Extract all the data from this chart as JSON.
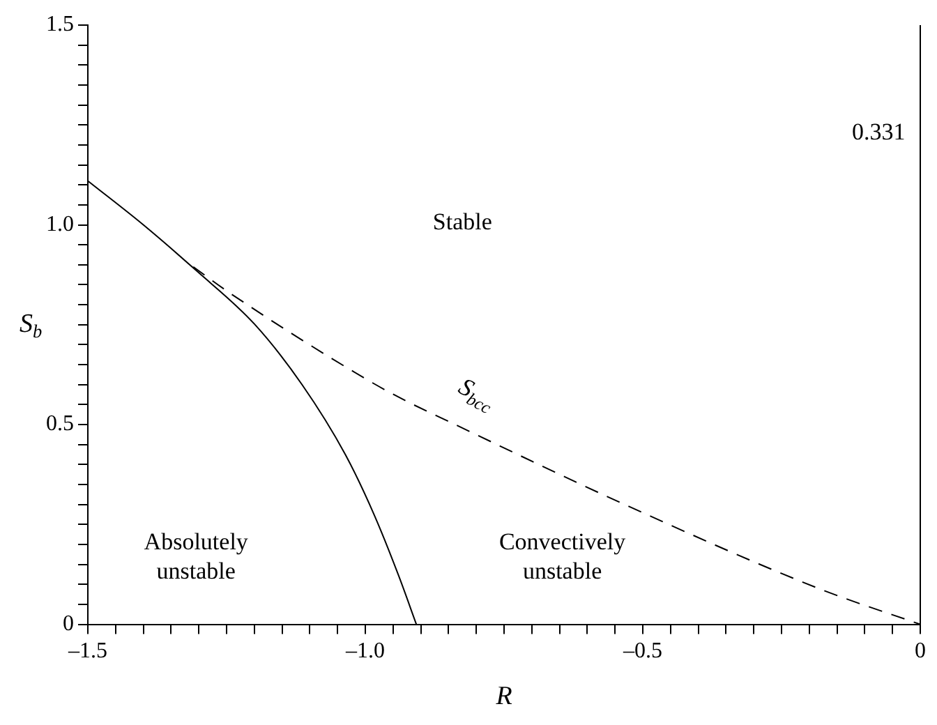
{
  "chart_data": {
    "type": "line",
    "xlabel": "R",
    "ylabel": "S$_{b}$",
    "xlim": [
      -1.5,
      0
    ],
    "ylim": [
      0,
      1.5
    ],
    "xticks": [
      {
        "value": -1.5,
        "label": "–1.5"
      },
      {
        "value": -1.45,
        "label": null
      },
      {
        "value": -1.4,
        "label": null
      },
      {
        "value": -1.35,
        "label": null
      },
      {
        "value": -1.3,
        "label": null
      },
      {
        "value": -1.25,
        "label": null
      },
      {
        "value": -1.2,
        "label": null
      },
      {
        "value": -1.15,
        "label": null
      },
      {
        "value": -1.1,
        "label": null
      },
      {
        "value": -1.05,
        "label": null
      },
      {
        "value": -1.0,
        "label": "–1.0"
      },
      {
        "value": -0.95,
        "label": null
      },
      {
        "value": -0.9,
        "label": null
      },
      {
        "value": -0.85,
        "label": null
      },
      {
        "value": -0.8,
        "label": null
      },
      {
        "value": -0.75,
        "label": null
      },
      {
        "value": -0.7,
        "label": null
      },
      {
        "value": -0.65,
        "label": null
      },
      {
        "value": -0.6,
        "label": null
      },
      {
        "value": -0.55,
        "label": null
      },
      {
        "value": -0.5,
        "label": "–0.5"
      },
      {
        "value": -0.45,
        "label": null
      },
      {
        "value": -0.4,
        "label": null
      },
      {
        "value": -0.35,
        "label": null
      },
      {
        "value": -0.3,
        "label": null
      },
      {
        "value": -0.25,
        "label": null
      },
      {
        "value": -0.2,
        "label": null
      },
      {
        "value": -0.15,
        "label": null
      },
      {
        "value": -0.1,
        "label": null
      },
      {
        "value": -0.05,
        "label": null
      },
      0
    ],
    "yticks": [
      0,
      {
        "value": 0.05,
        "label": null
      },
      {
        "value": 0.1,
        "label": null
      },
      {
        "value": 0.15,
        "label": null
      },
      {
        "value": 0.2,
        "label": null
      },
      {
        "value": 0.25,
        "label": null
      },
      {
        "value": 0.3,
        "label": null
      },
      {
        "value": 0.35,
        "label": null
      },
      {
        "value": 0.4,
        "label": null
      },
      {
        "value": 0.45,
        "label": null
      },
      0.5,
      {
        "value": 0.55,
        "label": null
      },
      {
        "value": 0.6,
        "label": null
      },
      {
        "value": 0.65,
        "label": null
      },
      {
        "value": 0.7,
        "label": null
      },
      {
        "value": 0.75,
        "label": null
      },
      {
        "value": 0.8,
        "label": null
      },
      {
        "value": 0.85,
        "label": null
      },
      {
        "value": 0.9,
        "label": null
      },
      {
        "value": 0.95,
        "label": null
      },
      {
        "value": 1.0,
        "label": "1.0"
      },
      {
        "value": 1.05,
        "label": null
      },
      {
        "value": 1.1,
        "label": null
      },
      {
        "value": 1.15,
        "label": null
      },
      {
        "value": 1.2,
        "label": null
      },
      {
        "value": 1.25,
        "label": null
      },
      {
        "value": 1.3,
        "label": null
      },
      {
        "value": 1.35,
        "label": null
      },
      {
        "value": 1.4,
        "label": null
      },
      {
        "value": 1.45,
        "label": null
      },
      1.5
    ],
    "grid": false,
    "legend": false,
    "marker": "none",
    "series": [
      {
        "color": "#000000",
        "line_style": "solid",
        "x": [
          -1.5,
          -1.4,
          -1.305,
          -1.2,
          -1.114,
          -1.036,
          -0.984,
          -0.94,
          -0.908
        ],
        "values": [
          1.11,
          1.0,
          0.886,
          0.752,
          0.6,
          0.425,
          0.274,
          0.122,
          0
        ]
      },
      {
        "name": "S$_{bcc}$",
        "color": "#000000",
        "line_style": "dashed",
        "x": [
          -1.31,
          -1.247,
          -1.0,
          -0.932,
          -0.835,
          -0.528,
          -0.178,
          0
        ],
        "values": [
          0.895,
          0.832,
          0.615,
          0.563,
          0.498,
          0.297,
          0.087,
          0
        ]
      }
    ],
    "annotations": [
      "Stable",
      "0.331",
      "Absolutely unstable",
      "Convectively unstable"
    ]
  }
}
